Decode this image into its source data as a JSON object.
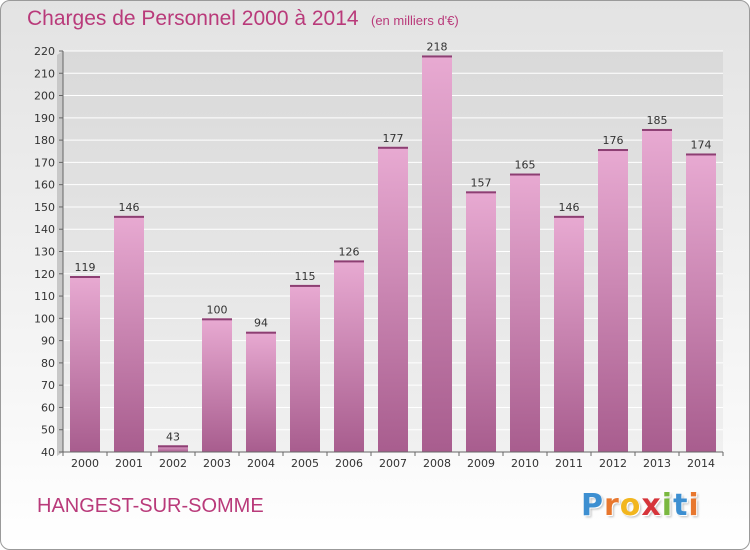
{
  "chart_data": {
    "type": "bar",
    "title": "Charges de Personnel 2000 à 2014",
    "subtitle": "(en milliers d'€)",
    "categories": [
      "2000",
      "2001",
      "2002",
      "2003",
      "2004",
      "2005",
      "2006",
      "2007",
      "2008",
      "2009",
      "2010",
      "2011",
      "2012",
      "2013",
      "2014"
    ],
    "values": [
      119,
      146,
      43,
      100,
      94,
      115,
      126,
      177,
      218,
      157,
      165,
      146,
      176,
      185,
      174
    ],
    "ylim": [
      40,
      220
    ],
    "yticks": [
      40,
      50,
      60,
      70,
      80,
      90,
      100,
      110,
      120,
      130,
      140,
      150,
      160,
      170,
      180,
      190,
      200,
      210,
      220
    ],
    "grid": true,
    "legend": "none"
  },
  "footer": {
    "commune": "HANGEST-SUR-SOMME",
    "logo_letters": [
      "P",
      "r",
      "o",
      "x",
      "i",
      "t",
      "i"
    ]
  },
  "colors": {
    "title": "#b93a7a",
    "bar_light": "#e8aad2",
    "bar_dark": "#a85d8e",
    "logo": [
      "#3d8fd1",
      "#e8772e",
      "#f2b61e",
      "#d6343a",
      "#7ab840",
      "#3d8fd1",
      "#e8772e"
    ]
  }
}
